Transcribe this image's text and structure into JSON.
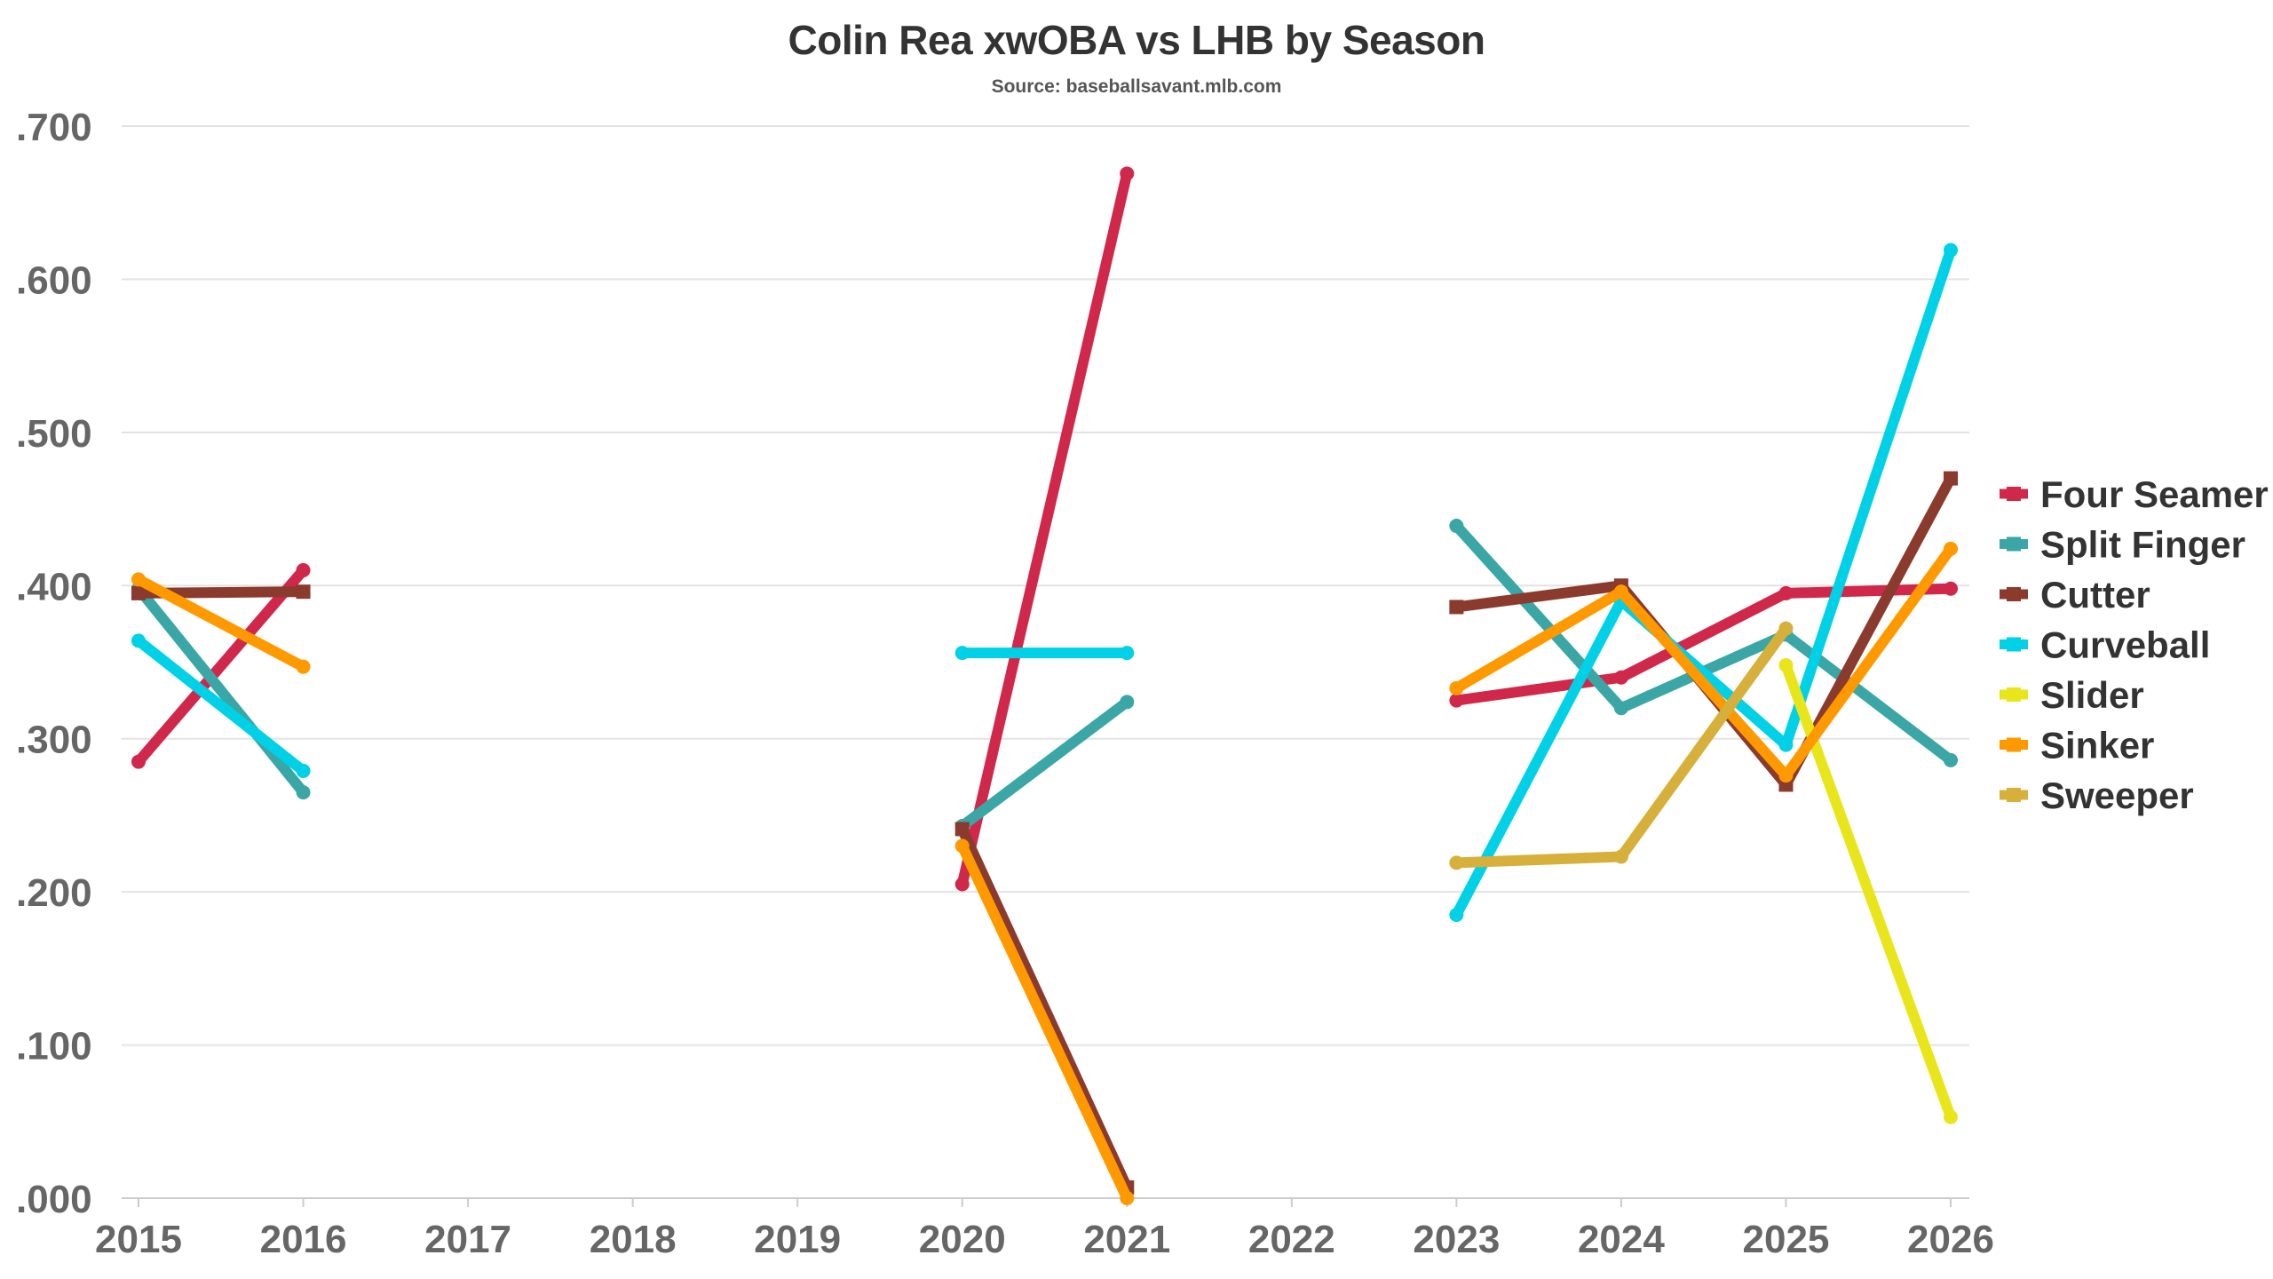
{
  "title": "Colin Rea xwOBA vs LHB by Season",
  "subtitle": "Source: baseballsavant.mlb.com",
  "chart_data": {
    "type": "line",
    "title": "Colin Rea xwOBA vs LHB by Season",
    "subtitle": "Source: baseballsavant.mlb.com",
    "xlabel": "",
    "ylabel": "",
    "x": [
      "2015",
      "2016",
      "2017",
      "2018",
      "2019",
      "2020",
      "2021",
      "2022",
      "2023",
      "2024",
      "2025",
      "2026"
    ],
    "y_ticks": [
      ".000",
      ".100",
      ".200",
      ".300",
      ".400",
      ".500",
      ".600",
      ".700"
    ],
    "ylim": [
      0,
      0.7
    ],
    "grid": "horizontal",
    "legend_position": "right",
    "series": [
      {
        "name": "Four Seamer",
        "color": "#d0284b",
        "values": [
          0.285,
          0.41,
          null,
          null,
          null,
          0.205,
          0.669,
          null,
          0.325,
          0.34,
          0.395,
          0.398
        ]
      },
      {
        "name": "Split Finger",
        "color": "#3aa6a6",
        "values": [
          0.398,
          0.265,
          null,
          null,
          null,
          0.243,
          0.324,
          null,
          0.439,
          0.32,
          0.368,
          0.286
        ]
      },
      {
        "name": "Cutter",
        "color": "#8b3a2e",
        "values": [
          0.395,
          0.396,
          null,
          null,
          null,
          0.241,
          0.007,
          null,
          0.386,
          0.4,
          0.27,
          0.47
        ]
      },
      {
        "name": "Curveball",
        "color": "#00d1e6",
        "values": [
          0.364,
          0.279,
          null,
          null,
          null,
          0.356,
          0.356,
          null,
          0.185,
          0.39,
          0.296,
          0.619
        ]
      },
      {
        "name": "Slider",
        "color": "#e8e61a",
        "values": [
          null,
          null,
          null,
          null,
          null,
          null,
          null,
          null,
          null,
          null,
          0.348,
          0.053
        ]
      },
      {
        "name": "Sinker",
        "color": "#ff9900",
        "values": [
          0.404,
          0.347,
          null,
          null,
          null,
          0.23,
          0.0,
          null,
          0.333,
          0.396,
          0.276,
          0.424
        ]
      },
      {
        "name": "Sweeper",
        "color": "#d6b03a",
        "values": [
          null,
          null,
          null,
          null,
          null,
          null,
          null,
          null,
          0.219,
          0.223,
          0.372,
          null
        ]
      }
    ]
  }
}
